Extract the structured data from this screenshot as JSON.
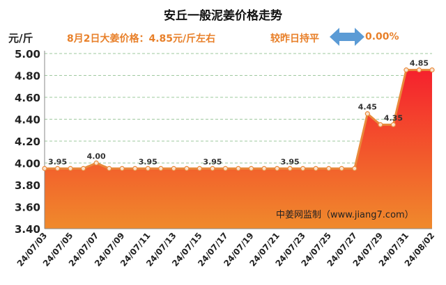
{
  "header": {
    "title": "安丘一般泥姜价格走势",
    "unit": "元/斤",
    "price_note": "8月2日大姜价格：4.85元/斤左右",
    "change_label": "较昨日持平",
    "change_value": "0.00%",
    "watermark": "中姜网监制（www.jiang7.com）"
  },
  "icons": {
    "change_arrow": "double-headed-arrow-icon"
  },
  "colors": {
    "accent_orange": "#e8802a",
    "arrow_blue": "#5b9bd5",
    "area_top": "#f5212d",
    "area_bottom": "#f08a2c",
    "line": "#e88a3c",
    "grid": "#7fb77f"
  },
  "chart_data": {
    "type": "area",
    "x": [
      "24/07/03",
      "24/07/04",
      "24/07/05",
      "24/07/06",
      "24/07/07",
      "24/07/08",
      "24/07/09",
      "24/07/10",
      "24/07/11",
      "24/07/12",
      "24/07/13",
      "24/07/14",
      "24/07/15",
      "24/07/16",
      "24/07/17",
      "24/07/18",
      "24/07/19",
      "24/07/20",
      "24/07/21",
      "24/07/22",
      "24/07/23",
      "24/07/24",
      "24/07/25",
      "24/07/26",
      "24/07/27",
      "24/07/28",
      "24/07/29",
      "24/07/30",
      "24/07/31",
      "24/08/01",
      "24/08/02"
    ],
    "values": [
      3.95,
      3.95,
      3.95,
      3.95,
      4.0,
      3.95,
      3.95,
      3.95,
      3.95,
      3.95,
      3.95,
      3.95,
      3.95,
      3.95,
      3.95,
      3.95,
      3.95,
      3.95,
      3.95,
      3.95,
      3.95,
      3.95,
      3.95,
      3.95,
      3.95,
      4.45,
      4.35,
      4.35,
      4.85,
      4.85,
      4.85
    ],
    "xticks": [
      "24/07/03",
      "24/07/05",
      "24/07/07",
      "24/07/09",
      "24/07/11",
      "24/07/13",
      "24/07/15",
      "24/07/17",
      "24/07/19",
      "24/07/21",
      "24/07/23",
      "24/07/25",
      "24/07/27",
      "24/07/29",
      "24/07/31",
      "24/08/02"
    ],
    "yticks": [
      "3.40",
      "3.60",
      "3.80",
      "4.00",
      "4.20",
      "4.40",
      "4.60",
      "4.80",
      "5.00"
    ],
    "ylim": [
      3.4,
      5.0
    ],
    "labeled_points": [
      {
        "x": "24/07/04",
        "label": "3.95"
      },
      {
        "x": "24/07/07",
        "label": "4.00"
      },
      {
        "x": "24/07/11",
        "label": "3.95"
      },
      {
        "x": "24/07/16",
        "label": "3.95"
      },
      {
        "x": "24/07/22",
        "label": "3.95"
      },
      {
        "x": "24/07/28",
        "label": "4.45"
      },
      {
        "x": "24/07/30",
        "label": "4.35"
      },
      {
        "x": "24/08/01",
        "label": "4.85"
      }
    ],
    "grid": true
  }
}
